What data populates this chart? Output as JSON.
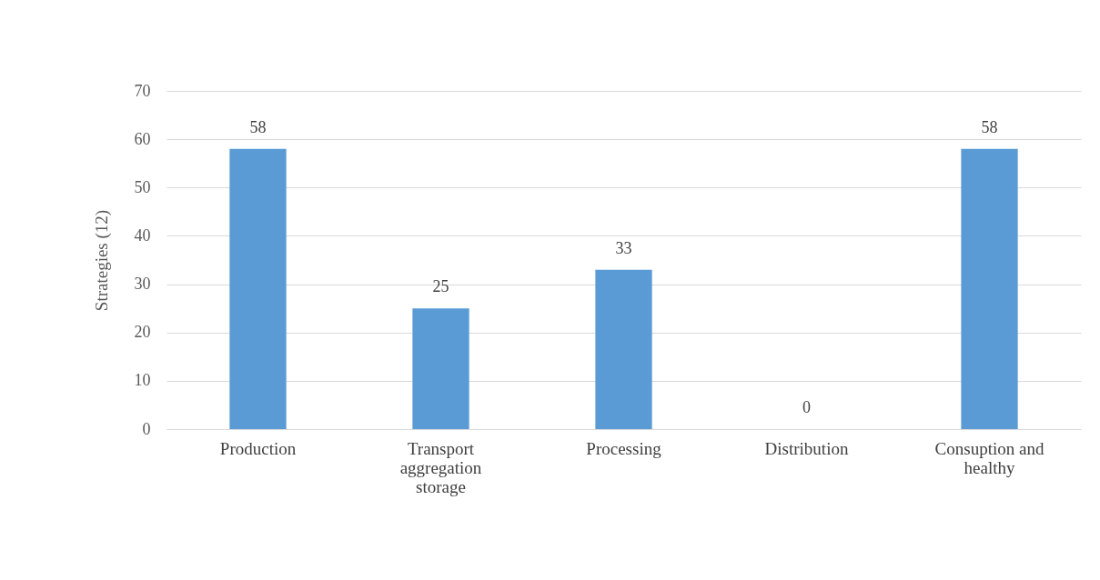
{
  "chart_data": {
    "type": "bar",
    "ylabel": "Strategies (12)",
    "categories": [
      "Production",
      "Transport aggregation storage",
      "Processing",
      "Distribution",
      "Consuption and healthy"
    ],
    "values": [
      58,
      25,
      33,
      0,
      58
    ],
    "color": "#5b9bd5",
    "ylim": [
      0,
      70
    ],
    "yticks": [
      0,
      10,
      20,
      30,
      40,
      50,
      60,
      70
    ],
    "grid": "y",
    "data_labels": true
  }
}
